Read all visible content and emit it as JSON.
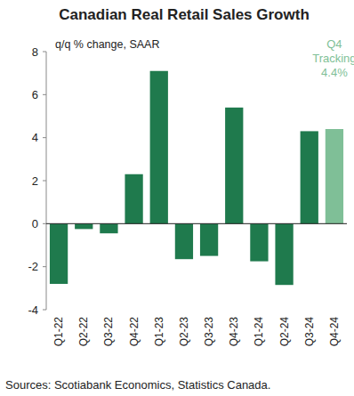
{
  "chart_data": {
    "type": "bar",
    "title": "Canadian Real Retail Sales Growth",
    "subtitle": "q/q % change, SAAR",
    "annotations": [
      "Q4",
      "Tracking",
      "4.4%"
    ],
    "source": "Sources: Scotiabank Economics, Statistics Canada.",
    "categories": [
      "Q1-22",
      "Q2-22",
      "Q3-22",
      "Q4-22",
      "Q1-23",
      "Q2-23",
      "Q3-23",
      "Q4-23",
      "Q1-24",
      "Q2-24",
      "Q3-24",
      "Q4-24"
    ],
    "values": [
      -2.8,
      -0.25,
      -0.45,
      2.3,
      7.1,
      -1.65,
      -1.5,
      5.4,
      -1.75,
      -2.85,
      4.3,
      4.4
    ],
    "colors": [
      "#1f7a4d",
      "#1f7a4d",
      "#1f7a4d",
      "#1f7a4d",
      "#1f7a4d",
      "#1f7a4d",
      "#1f7a4d",
      "#1f7a4d",
      "#1f7a4d",
      "#1f7a4d",
      "#1f7a4d",
      "#7fbf97"
    ],
    "ylim": [
      -4,
      8
    ],
    "yticks": [
      -4,
      -2,
      0,
      2,
      4,
      6,
      8
    ],
    "grid": false
  }
}
